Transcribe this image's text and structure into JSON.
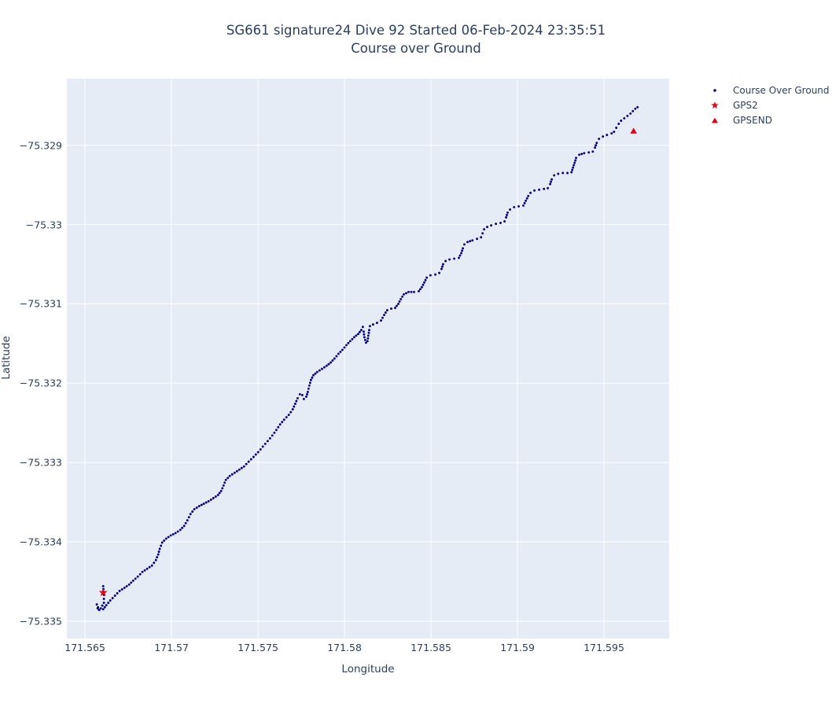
{
  "title": {
    "line1": "SG661 signature24 Dive 92 Started 06-Feb-2024 23:35:51",
    "line2": "Course over Ground"
  },
  "colors": {
    "plot_bg": "#e5ecf6",
    "grid": "#ffffff",
    "text": "#2a3f5f",
    "track": "#000080",
    "marker_red": "#e60012"
  },
  "legend": {
    "items": [
      {
        "label": "Course Over Ground",
        "marker": "dot",
        "color": "#000080"
      },
      {
        "label": "GPS2",
        "marker": "star",
        "color": "#e60012"
      },
      {
        "label": "GPSEND",
        "marker": "triangle-up",
        "color": "#e60012"
      }
    ]
  },
  "chart_data": {
    "type": "scatter",
    "title": "SG661 signature24 Dive 92 Started 06-Feb-2024 23:35:51",
    "subtitle": "Course over Ground",
    "xlabel": "Longitude",
    "ylabel": "Latitude",
    "xlim": [
      171.56395,
      171.59877
    ],
    "ylim": [
      -75.33522,
      -75.32816
    ],
    "grid": true,
    "legend_position": "top-right-outside",
    "x_ticks": {
      "values": [
        171.565,
        171.57,
        171.575,
        171.58,
        171.585,
        171.59,
        171.595
      ],
      "labels": [
        "171.565",
        "171.57",
        "171.575",
        "171.58",
        "171.585",
        "171.59",
        "171.595"
      ]
    },
    "y_ticks": {
      "values": [
        -75.329,
        -75.33,
        -75.331,
        -75.332,
        -75.333,
        -75.334,
        -75.335
      ],
      "labels": [
        "−75.329",
        "−75.33",
        "−75.331",
        "−75.332",
        "−75.333",
        "−75.334",
        "−75.335"
      ]
    },
    "series": [
      {
        "name": "Course Over Ground",
        "mode": "dotted-track",
        "color": "#000080",
        "points": [
          [
            171.56605,
            -75.33456
          ],
          [
            171.56609,
            -75.33467
          ],
          [
            171.56609,
            -75.33477
          ],
          [
            171.56591,
            -75.33484
          ],
          [
            171.56573,
            -75.33484
          ],
          [
            171.56568,
            -75.33479
          ],
          [
            171.56582,
            -75.33486
          ],
          [
            171.56605,
            -75.33485
          ],
          [
            171.56623,
            -75.3348
          ],
          [
            171.56646,
            -75.33474
          ],
          [
            171.56673,
            -75.33468
          ],
          [
            171.567,
            -75.33462
          ],
          [
            171.56728,
            -75.33458
          ],
          [
            171.56755,
            -75.33454
          ],
          [
            171.56778,
            -75.33449
          ],
          [
            171.56805,
            -75.33444
          ],
          [
            171.56832,
            -75.33438
          ],
          [
            171.56859,
            -75.33434
          ],
          [
            171.56887,
            -75.3343
          ],
          [
            171.5691,
            -75.33423
          ],
          [
            171.56923,
            -75.33416
          ],
          [
            171.56932,
            -75.33409
          ],
          [
            171.56946,
            -75.33401
          ],
          [
            171.56969,
            -75.33396
          ],
          [
            171.56996,
            -75.33392
          ],
          [
            171.57023,
            -75.33389
          ],
          [
            171.57051,
            -75.33385
          ],
          [
            171.57073,
            -75.3338
          ],
          [
            171.57092,
            -75.33373
          ],
          [
            171.5711,
            -75.33365
          ],
          [
            171.57132,
            -75.33359
          ],
          [
            171.5716,
            -75.33355
          ],
          [
            171.57187,
            -75.33352
          ],
          [
            171.57214,
            -75.33349
          ],
          [
            171.57242,
            -75.33345
          ],
          [
            171.57269,
            -75.33341
          ],
          [
            171.57287,
            -75.33336
          ],
          [
            171.57301,
            -75.33329
          ],
          [
            171.57314,
            -75.33322
          ],
          [
            171.57337,
            -75.33317
          ],
          [
            171.57365,
            -75.33313
          ],
          [
            171.57392,
            -75.33309
          ],
          [
            171.57419,
            -75.33305
          ],
          [
            171.57446,
            -75.33299
          ],
          [
            171.57474,
            -75.33293
          ],
          [
            171.57501,
            -75.33287
          ],
          [
            171.57528,
            -75.3328
          ],
          [
            171.57556,
            -75.33273
          ],
          [
            171.57583,
            -75.33266
          ],
          [
            171.57606,
            -75.33259
          ],
          [
            171.57628,
            -75.33252
          ],
          [
            171.57651,
            -75.33246
          ],
          [
            171.57678,
            -75.3324
          ],
          [
            171.57701,
            -75.33233
          ],
          [
            171.57715,
            -75.33226
          ],
          [
            171.57729,
            -75.33219
          ],
          [
            171.57742,
            -75.33214
          ],
          [
            171.57756,
            -75.33215
          ],
          [
            171.57765,
            -75.3322
          ],
          [
            171.57779,
            -75.33217
          ],
          [
            171.57788,
            -75.33211
          ],
          [
            171.57797,
            -75.33203
          ],
          [
            171.57806,
            -75.33196
          ],
          [
            171.5782,
            -75.3319
          ],
          [
            171.57842,
            -75.33186
          ],
          [
            171.5787,
            -75.33182
          ],
          [
            171.57897,
            -75.33178
          ],
          [
            171.5792,
            -75.33174
          ],
          [
            171.57942,
            -75.33169
          ],
          [
            171.57965,
            -75.33163
          ],
          [
            171.57988,
            -75.33158
          ],
          [
            171.58011,
            -75.33152
          ],
          [
            171.58033,
            -75.33147
          ],
          [
            171.58056,
            -75.33142
          ],
          [
            171.58079,
            -75.33138
          ],
          [
            171.58097,
            -75.33133
          ],
          [
            171.58106,
            -75.33129
          ],
          [
            171.58111,
            -75.33135
          ],
          [
            171.58115,
            -75.33142
          ],
          [
            171.58124,
            -75.33149
          ],
          [
            171.58133,
            -75.33147
          ],
          [
            171.58138,
            -75.3314
          ],
          [
            171.58143,
            -75.33133
          ],
          [
            171.58147,
            -75.33128
          ],
          [
            171.58165,
            -75.33126
          ],
          [
            171.58188,
            -75.33124
          ],
          [
            171.58211,
            -75.33121
          ],
          [
            171.58229,
            -75.33114
          ],
          [
            171.58247,
            -75.33108
          ],
          [
            171.5827,
            -75.33106
          ],
          [
            171.58293,
            -75.33105
          ],
          [
            171.58311,
            -75.331
          ],
          [
            171.58325,
            -75.33094
          ],
          [
            171.58343,
            -75.33088
          ],
          [
            171.5837,
            -75.33085
          ],
          [
            171.58402,
            -75.33085
          ],
          [
            171.58429,
            -75.33084
          ],
          [
            171.58447,
            -75.33079
          ],
          [
            171.58461,
            -75.33073
          ],
          [
            171.58475,
            -75.33067
          ],
          [
            171.58497,
            -75.33064
          ],
          [
            171.58525,
            -75.33063
          ],
          [
            171.58548,
            -75.33061
          ],
          [
            171.58561,
            -75.33056
          ],
          [
            171.5857,
            -75.3305
          ],
          [
            171.58584,
            -75.33046
          ],
          [
            171.58607,
            -75.33044
          ],
          [
            171.58634,
            -75.33043
          ],
          [
            171.58661,
            -75.33042
          ],
          [
            171.58675,
            -75.33036
          ],
          [
            171.58684,
            -75.3303
          ],
          [
            171.58693,
            -75.33025
          ],
          [
            171.58711,
            -75.33022
          ],
          [
            171.58739,
            -75.3302
          ],
          [
            171.58766,
            -75.33018
          ],
          [
            171.58789,
            -75.33016
          ],
          [
            171.58798,
            -75.33011
          ],
          [
            171.58807,
            -75.33006
          ],
          [
            171.58825,
            -75.33003
          ],
          [
            171.58848,
            -75.33001
          ],
          [
            171.58875,
            -75.32999
          ],
          [
            171.58902,
            -75.32998
          ],
          [
            171.58925,
            -75.32996
          ],
          [
            171.58934,
            -75.32991
          ],
          [
            171.58943,
            -75.32985
          ],
          [
            171.58957,
            -75.32981
          ],
          [
            171.5898,
            -75.32978
          ],
          [
            171.59007,
            -75.32977
          ],
          [
            171.59034,
            -75.32976
          ],
          [
            171.59048,
            -75.3297
          ],
          [
            171.59062,
            -75.32964
          ],
          [
            171.59075,
            -75.3296
          ],
          [
            171.59098,
            -75.32957
          ],
          [
            171.59125,
            -75.32956
          ],
          [
            171.59153,
            -75.32955
          ],
          [
            171.59175,
            -75.32954
          ],
          [
            171.59189,
            -75.32949
          ],
          [
            171.59198,
            -75.32943
          ],
          [
            171.59212,
            -75.32938
          ],
          [
            171.59235,
            -75.32936
          ],
          [
            171.59262,
            -75.32935
          ],
          [
            171.59289,
            -75.32935
          ],
          [
            171.59312,
            -75.32934
          ],
          [
            171.59321,
            -75.32928
          ],
          [
            171.5933,
            -75.32922
          ],
          [
            171.59339,
            -75.32916
          ],
          [
            171.59357,
            -75.32912
          ],
          [
            171.59385,
            -75.3291
          ],
          [
            171.59412,
            -75.32909
          ],
          [
            171.59435,
            -75.32908
          ],
          [
            171.59448,
            -75.32903
          ],
          [
            171.59458,
            -75.32897
          ],
          [
            171.59471,
            -75.32892
          ],
          [
            171.59494,
            -75.32889
          ],
          [
            171.59517,
            -75.32887
          ],
          [
            171.59544,
            -75.32885
          ],
          [
            171.59558,
            -75.32883
          ],
          [
            171.59571,
            -75.32878
          ],
          [
            171.59585,
            -75.32873
          ],
          [
            171.59599,
            -75.32869
          ],
          [
            171.59617,
            -75.32866
          ],
          [
            171.59635,
            -75.32863
          ],
          [
            171.59653,
            -75.3286
          ],
          [
            171.59667,
            -75.32857
          ],
          [
            171.59681,
            -75.32854
          ],
          [
            171.59694,
            -75.32852
          ]
        ]
      },
      {
        "name": "GPS2",
        "mode": "star",
        "color": "#e60012",
        "points": [
          [
            171.56605,
            -75.33464
          ]
        ]
      },
      {
        "name": "GPSEND",
        "mode": "triangle-up",
        "color": "#e60012",
        "points": [
          [
            171.59671,
            -75.32882
          ]
        ]
      }
    ]
  }
}
